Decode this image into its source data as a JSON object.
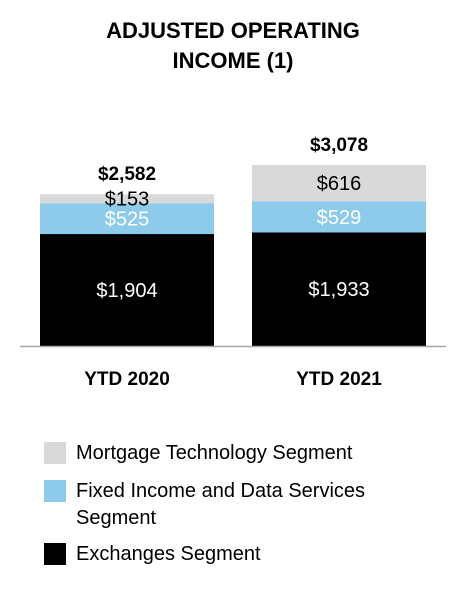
{
  "chart_data": {
    "type": "bar",
    "stacked": true,
    "title_lines": [
      "ADJUSTED OPERATING",
      "INCOME (1)"
    ],
    "categories": [
      "YTD 2020",
      "YTD 2021"
    ],
    "totals": [
      "$2,582",
      "$3,078"
    ],
    "series": [
      {
        "name": "Exchanges Segment",
        "values": [
          1904,
          1933
        ],
        "labels": [
          "$1,904",
          "$1,933"
        ],
        "color": "#000000",
        "label_color": "#ffffff"
      },
      {
        "name": "Fixed Income and Data Services Segment",
        "values": [
          525,
          529
        ],
        "labels": [
          "$525",
          "$529"
        ],
        "color": "#8ecbea",
        "label_color": "#ffffff"
      },
      {
        "name": "Mortgage Technology Segment",
        "values": [
          153,
          616
        ],
        "labels": [
          "$153",
          "$616"
        ],
        "color": "#d9d9d9",
        "label_color": "#000000"
      }
    ],
    "legend_order": [
      2,
      1,
      0
    ],
    "legend_placement": "bottom-left",
    "grid": false
  }
}
